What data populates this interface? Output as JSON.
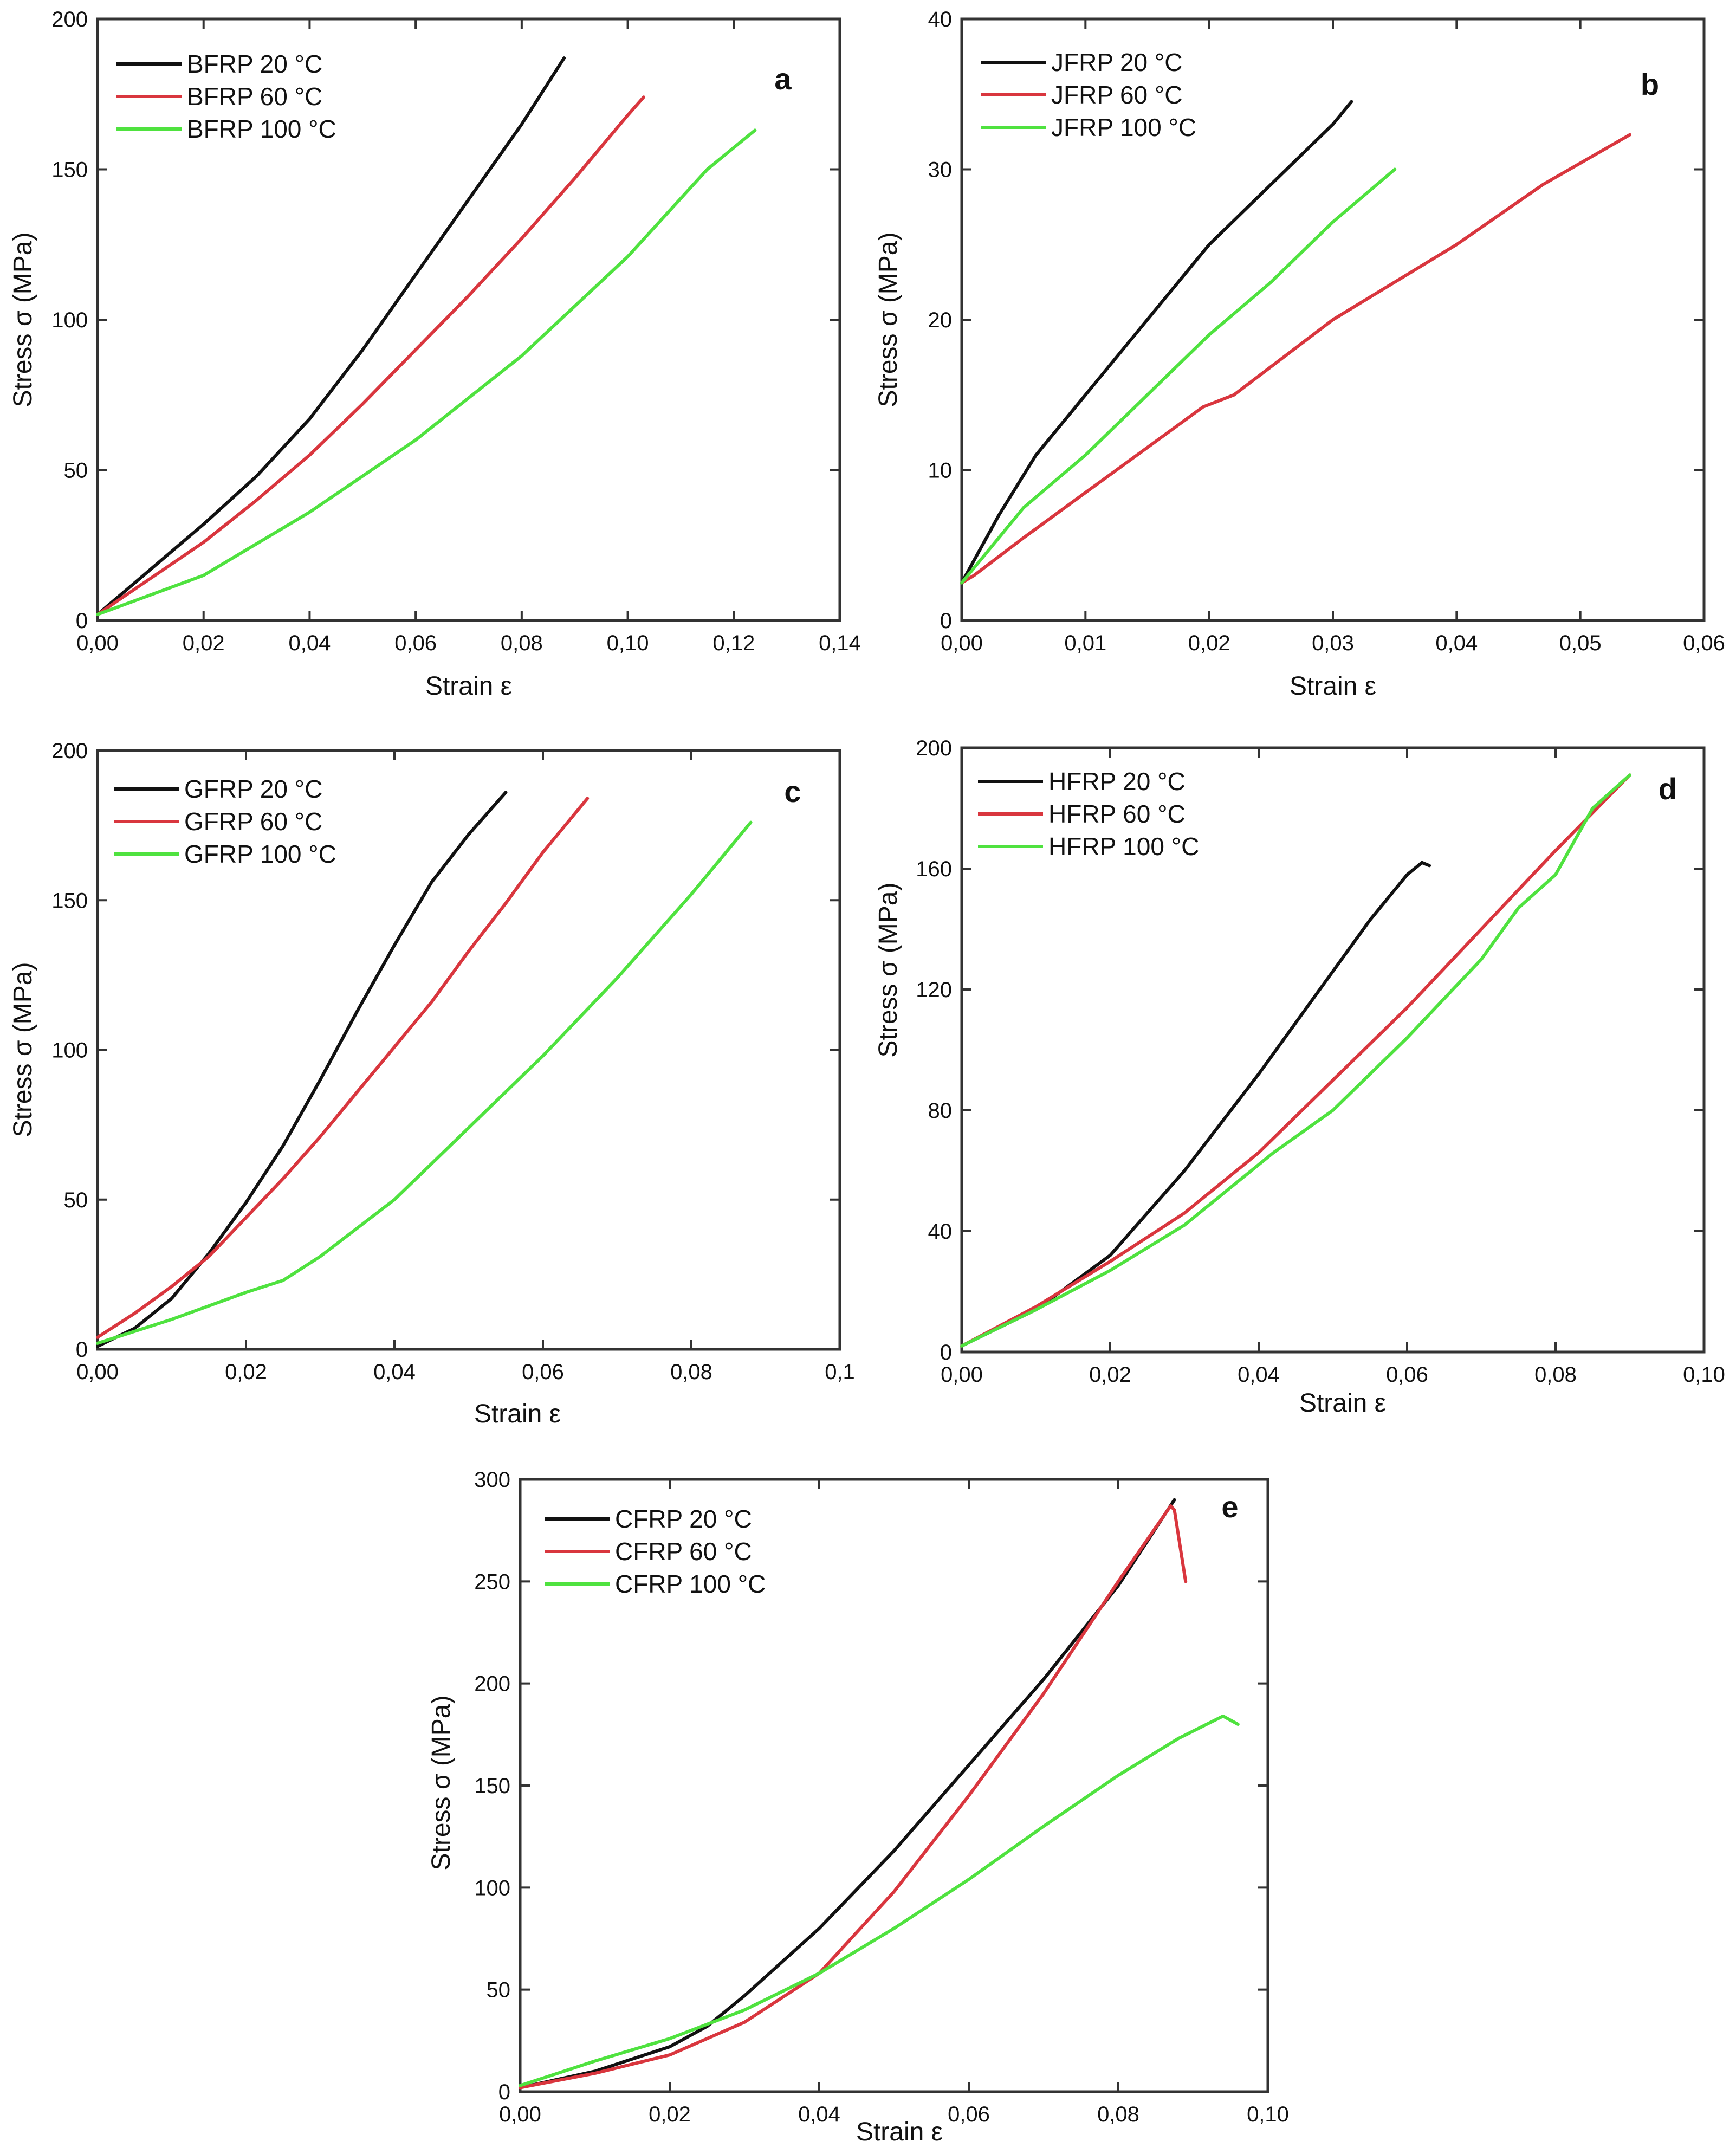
{
  "colors": {
    "black": "#111111",
    "red": "#d9363e",
    "green": "#4fe23f",
    "axis": "#333333"
  },
  "chart_data": [
    {
      "id": "a",
      "panel_letter": "a",
      "type": "line",
      "xlabel": "Strain ε",
      "ylabel": "Stress σ (MPa)",
      "xlim": [
        0,
        0.14
      ],
      "ylim": [
        0,
        200
      ],
      "xticks": [
        0,
        0.02,
        0.04,
        0.06,
        0.08,
        0.1,
        0.12,
        0.14
      ],
      "xtick_labels": [
        "0,00",
        "0,02",
        "0,04",
        "0,06",
        "0,08",
        "0,10",
        "0,12",
        "0,14"
      ],
      "yticks": [
        0,
        50,
        100,
        150,
        200
      ],
      "ytick_labels": [
        "0",
        "50",
        "100",
        "150",
        "200"
      ],
      "legend_position": "top-left",
      "series": [
        {
          "name": "BFRP 20 °C",
          "color": "#111111",
          "x": [
            0,
            0.01,
            0.02,
            0.03,
            0.04,
            0.05,
            0.06,
            0.07,
            0.08,
            0.088
          ],
          "y": [
            2,
            17,
            32,
            48,
            67,
            90,
            115,
            140,
            165,
            187
          ]
        },
        {
          "name": "BFRP 60 °C",
          "color": "#d9363e",
          "x": [
            0,
            0.01,
            0.02,
            0.03,
            0.04,
            0.05,
            0.06,
            0.07,
            0.08,
            0.09,
            0.1,
            0.103
          ],
          "y": [
            2,
            14,
            26,
            40,
            55,
            72,
            90,
            108,
            127,
            147,
            168,
            174
          ]
        },
        {
          "name": "BFRP 100 °C",
          "color": "#4fe23f",
          "x": [
            0,
            0.02,
            0.04,
            0.06,
            0.08,
            0.1,
            0.115,
            0.124
          ],
          "y": [
            2,
            15,
            36,
            60,
            88,
            121,
            150,
            163
          ]
        }
      ]
    },
    {
      "id": "b",
      "panel_letter": "b",
      "type": "line",
      "xlabel": "Strain ε",
      "ylabel": "Stress σ (MPa)",
      "xlim": [
        0,
        0.06
      ],
      "ylim": [
        0,
        40
      ],
      "xticks": [
        0,
        0.01,
        0.02,
        0.03,
        0.04,
        0.05,
        0.06
      ],
      "xtick_labels": [
        "0,00",
        "0,01",
        "0,02",
        "0,03",
        "0,04",
        "0,05",
        "0,06"
      ],
      "yticks": [
        0,
        10,
        20,
        30,
        40
      ],
      "ytick_labels": [
        "0",
        "10",
        "20",
        "30",
        "40"
      ],
      "legend_position": "top-left",
      "series": [
        {
          "name": "JFRP 20 °C",
          "color": "#111111",
          "x": [
            0,
            0.001,
            0.003,
            0.006,
            0.01,
            0.015,
            0.02,
            0.025,
            0.03,
            0.0315
          ],
          "y": [
            2.5,
            4,
            7,
            11,
            15,
            20,
            25,
            29,
            33,
            34.5
          ]
        },
        {
          "name": "JFRP 60 °C",
          "color": "#d9363e",
          "x": [
            0,
            0.001,
            0.005,
            0.01,
            0.015,
            0.0195,
            0.022,
            0.03,
            0.04,
            0.047,
            0.054
          ],
          "y": [
            2.5,
            3,
            5.5,
            8.5,
            11.5,
            14.2,
            15,
            20,
            25,
            29,
            32.3
          ]
        },
        {
          "name": "JFRP 100 °C",
          "color": "#4fe23f",
          "x": [
            0,
            0.001,
            0.005,
            0.01,
            0.015,
            0.02,
            0.025,
            0.03,
            0.035
          ],
          "y": [
            2.5,
            3.5,
            7.5,
            11,
            15,
            19,
            22.5,
            26.5,
            30
          ]
        }
      ]
    },
    {
      "id": "c",
      "panel_letter": "c",
      "type": "line",
      "xlabel": "Strain ε",
      "ylabel": "Stress σ (MPa)",
      "xlim": [
        0,
        0.1
      ],
      "ylim": [
        0,
        200
      ],
      "xticks": [
        0,
        0.02,
        0.04,
        0.06,
        0.08,
        0.1
      ],
      "xtick_labels": [
        "0,00",
        "0,02",
        "0,04",
        "0,06",
        "0,08",
        "0,1"
      ],
      "yticks": [
        0,
        50,
        100,
        150,
        200
      ],
      "ytick_labels": [
        "0",
        "50",
        "100",
        "150",
        "200"
      ],
      "legend_position": "top-left",
      "series": [
        {
          "name": "GFRP 20 °C",
          "color": "#111111",
          "x": [
            0,
            0.005,
            0.01,
            0.015,
            0.02,
            0.025,
            0.03,
            0.035,
            0.04,
            0.045,
            0.05,
            0.055
          ],
          "y": [
            1,
            7,
            17,
            32,
            49,
            68,
            90,
            113,
            135,
            156,
            172,
            186
          ]
        },
        {
          "name": "GFRP 60 °C",
          "color": "#d9363e",
          "x": [
            0,
            0.005,
            0.01,
            0.015,
            0.02,
            0.025,
            0.03,
            0.035,
            0.04,
            0.045,
            0.05,
            0.055,
            0.06,
            0.066
          ],
          "y": [
            4,
            12,
            21,
            31,
            44,
            57,
            71,
            86,
            101,
            116,
            133,
            149,
            166,
            184
          ]
        },
        {
          "name": "GFRP 100 °C",
          "color": "#4fe23f",
          "x": [
            0,
            0.01,
            0.02,
            0.025,
            0.03,
            0.04,
            0.05,
            0.06,
            0.07,
            0.08,
            0.088
          ],
          "y": [
            2,
            10,
            19,
            23,
            31,
            50,
            74,
            98,
            124,
            152,
            176
          ]
        }
      ]
    },
    {
      "id": "d",
      "panel_letter": "d",
      "type": "line",
      "xlabel": "Strain ε",
      "ylabel": "Stress σ (MPa)",
      "xlim": [
        0,
        0.1
      ],
      "ylim": [
        0,
        200
      ],
      "xticks": [
        0,
        0.02,
        0.04,
        0.06,
        0.08,
        0.1
      ],
      "xtick_labels": [
        "0,00",
        "0,02",
        "0,04",
        "0,06",
        "0,08",
        "0,10"
      ],
      "yticks": [
        0,
        40,
        80,
        120,
        160,
        200
      ],
      "ytick_labels": [
        "0",
        "40",
        "80",
        "120",
        "160",
        "200"
      ],
      "legend_position": "top-left",
      "series": [
        {
          "name": "HFRP 20 °C",
          "color": "#111111",
          "x": [
            0,
            0.01,
            0.02,
            0.03,
            0.04,
            0.05,
            0.055,
            0.06,
            0.062,
            0.063
          ],
          "y": [
            2,
            14,
            32,
            60,
            92,
            126,
            143,
            158,
            162,
            161
          ]
        },
        {
          "name": "HFRP 60 °C",
          "color": "#d9363e",
          "x": [
            0,
            0.01,
            0.02,
            0.03,
            0.04,
            0.05,
            0.06,
            0.07,
            0.08,
            0.09
          ],
          "y": [
            2,
            15,
            30,
            46,
            66,
            90,
            114,
            140,
            166,
            191
          ]
        },
        {
          "name": "HFRP 100 °C",
          "color": "#4fe23f",
          "x": [
            0,
            0.01,
            0.02,
            0.03,
            0.04,
            0.042,
            0.05,
            0.06,
            0.07,
            0.075,
            0.08,
            0.085,
            0.09
          ],
          "y": [
            2,
            14,
            27,
            42,
            62,
            66,
            80,
            104,
            130,
            147,
            158,
            180,
            191
          ]
        }
      ]
    },
    {
      "id": "e",
      "panel_letter": "e",
      "type": "line",
      "xlabel": "Strain ε",
      "ylabel": "Stress σ (MPa)",
      "xlim": [
        0,
        0.1
      ],
      "ylim": [
        0,
        300
      ],
      "xticks": [
        0,
        0.02,
        0.04,
        0.06,
        0.08,
        0.1
      ],
      "xtick_labels": [
        "0,00",
        "0,02",
        "0,04",
        "0,06",
        "0,08",
        "0,10"
      ],
      "yticks": [
        0,
        50,
        100,
        150,
        200,
        250,
        300
      ],
      "ytick_labels": [
        "0",
        "50",
        "100",
        "150",
        "200",
        "250",
        "300"
      ],
      "legend_position": "top-left",
      "series": [
        {
          "name": "CFRP 20 °C",
          "color": "#111111",
          "x": [
            0,
            0.01,
            0.02,
            0.025,
            0.03,
            0.04,
            0.05,
            0.06,
            0.07,
            0.08,
            0.0875
          ],
          "y": [
            2,
            10,
            22,
            32,
            47,
            80,
            118,
            160,
            202,
            248,
            290
          ]
        },
        {
          "name": "CFRP 60 °C",
          "color": "#d9363e",
          "x": [
            0,
            0.01,
            0.02,
            0.03,
            0.04,
            0.05,
            0.06,
            0.07,
            0.08,
            0.087,
            0.0875,
            0.089
          ],
          "y": [
            2,
            9,
            18,
            34,
            58,
            98,
            145,
            195,
            250,
            287,
            285,
            250
          ]
        },
        {
          "name": "CFRP 100 °C",
          "color": "#4fe23f",
          "x": [
            0,
            0.01,
            0.02,
            0.03,
            0.04,
            0.05,
            0.06,
            0.07,
            0.08,
            0.088,
            0.094,
            0.096
          ],
          "y": [
            3,
            15,
            26,
            40,
            58,
            80,
            104,
            130,
            155,
            173,
            184,
            180
          ]
        }
      ]
    }
  ]
}
